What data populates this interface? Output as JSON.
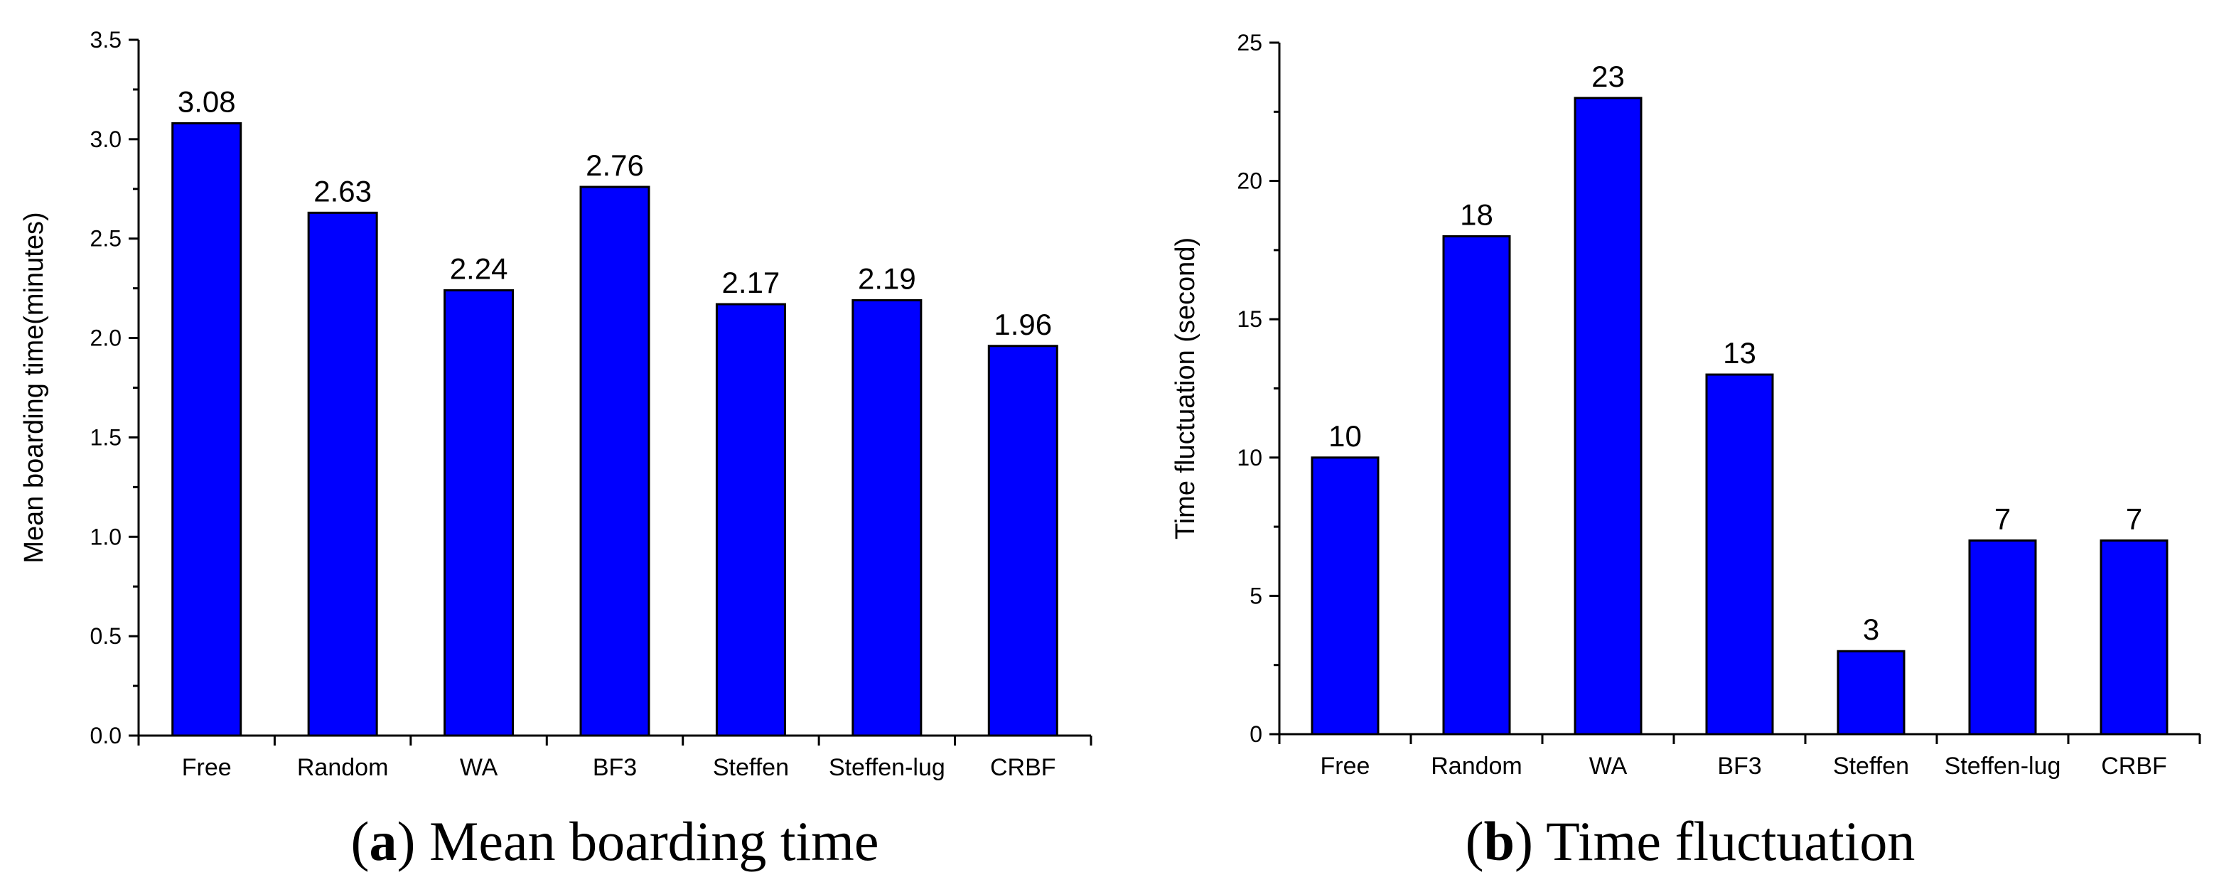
{
  "chart_data": [
    {
      "type": "bar",
      "title": "",
      "caption_letter": "a",
      "caption_text": "Mean boarding time",
      "xlabel": "",
      "ylabel": "Mean boarding time(minutes)",
      "categories": [
        "Free",
        "Random",
        "WA",
        "BF3",
        "Steffen",
        "Steffen-lug",
        "CRBF"
      ],
      "values": [
        3.08,
        2.63,
        2.24,
        2.76,
        2.17,
        2.19,
        1.96
      ],
      "data_labels": [
        "3.08",
        "2.63",
        "2.24",
        "2.76",
        "2.17",
        "2.19",
        "1.96"
      ],
      "ylim": [
        0,
        3.5
      ],
      "yticks": [
        0.0,
        0.5,
        1.0,
        1.5,
        2.0,
        2.5,
        3.0,
        3.5
      ],
      "ytick_labels": [
        "0.0",
        "0.5",
        "1.0",
        "1.5",
        "2.0",
        "2.5",
        "3.0",
        "3.5"
      ],
      "bar_color": "#0000FF",
      "grid": false
    },
    {
      "type": "bar",
      "title": "",
      "caption_letter": "b",
      "caption_text": "Time fluctuation",
      "xlabel": "",
      "ylabel": "Time fluctuation (second)",
      "categories": [
        "Free",
        "Random",
        "WA",
        "BF3",
        "Steffen",
        "Steffen-lug",
        "CRBF"
      ],
      "values": [
        10,
        18,
        23,
        13,
        3,
        7,
        7
      ],
      "data_labels": [
        "10",
        "18",
        "23",
        "13",
        "3",
        "7",
        "7"
      ],
      "ylim": [
        0,
        25
      ],
      "yticks": [
        0,
        5,
        10,
        15,
        20,
        25
      ],
      "ytick_labels": [
        "0",
        "5",
        "10",
        "15",
        "20",
        "25"
      ],
      "bar_color": "#0000FF",
      "grid": false
    }
  ]
}
